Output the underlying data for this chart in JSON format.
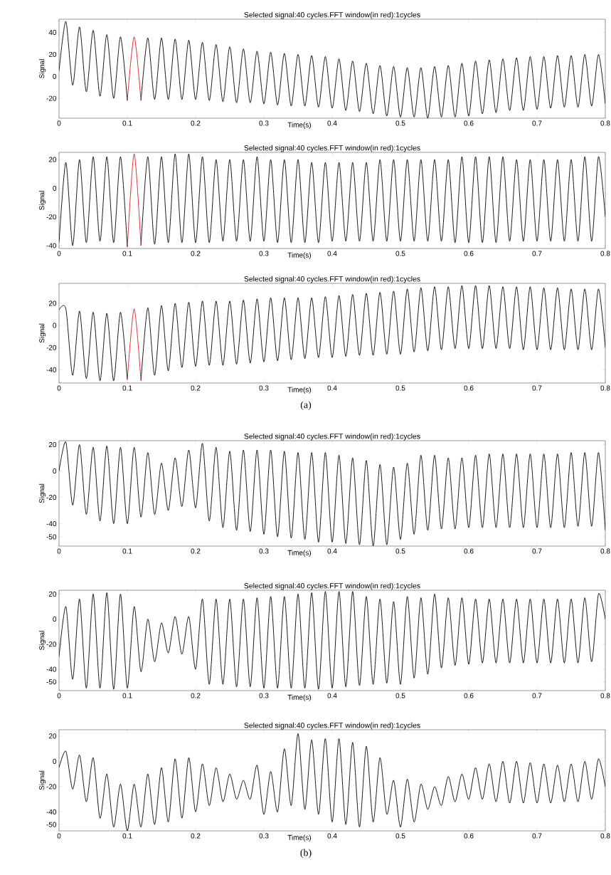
{
  "chart_data": [
    {
      "type": "line",
      "title": "Selected signal:40 cycles.FFT window(in red):1cycles",
      "xlabel": "Time(s)",
      "ylabel": "Signal",
      "x": [
        0,
        0.01,
        0.02,
        0.03,
        0.04,
        0.05,
        0.06,
        0.07,
        0.08,
        0.09,
        0.1,
        0.11,
        0.12,
        0.13,
        0.14,
        0.15,
        0.16,
        0.17,
        0.18,
        0.19,
        0.2,
        0.21,
        0.22,
        0.23,
        0.24,
        0.25,
        0.26,
        0.27,
        0.28,
        0.29,
        0.3,
        0.31,
        0.32,
        0.33,
        0.34,
        0.35,
        0.36,
        0.37,
        0.38,
        0.39,
        0.4,
        0.41,
        0.42,
        0.43,
        0.44,
        0.45,
        0.46,
        0.47,
        0.48,
        0.49,
        0.5,
        0.51,
        0.52,
        0.53,
        0.54,
        0.55,
        0.56,
        0.57,
        0.58,
        0.59,
        0.6,
        0.61,
        0.62,
        0.63,
        0.64,
        0.65,
        0.66,
        0.67,
        0.68,
        0.69,
        0.7,
        0.71,
        0.72,
        0.73,
        0.74,
        0.75,
        0.76,
        0.77,
        0.78,
        0.79,
        0.8
      ],
      "series": [
        {
          "color": "#000000",
          "values": [
            5,
            50,
            -8,
            45,
            -14,
            42,
            -18,
            38,
            -20,
            36,
            -22,
            null,
            -22,
            35,
            -21,
            35,
            -21,
            34,
            -21,
            33,
            -21,
            31,
            -22,
            29,
            -23,
            27,
            -24,
            25,
            -24,
            23,
            -25,
            22,
            -26,
            21,
            -27,
            20,
            -27,
            19,
            -28,
            18,
            -29,
            16,
            -31,
            14,
            -32,
            12,
            -34,
            10,
            -36,
            9,
            -37,
            8,
            -37,
            8,
            -38,
            9,
            -37,
            10,
            -37,
            12,
            -36,
            14,
            -34,
            15,
            -33,
            16,
            -31,
            17,
            -31,
            18,
            -30,
            18,
            -29,
            19,
            -28,
            19,
            -28,
            20,
            -27,
            20,
            -25
          ]
        },
        {
          "color": "#e8141e",
          "x": [
            0.1,
            0.11,
            0.12
          ],
          "values": [
            -22,
            36,
            -22
          ]
        }
      ],
      "xlim": [
        0,
        0.8
      ],
      "ylim": [
        -38,
        52
      ],
      "xticks": [
        0,
        0.1,
        0.2,
        0.3,
        0.4,
        0.5,
        0.6,
        0.7,
        0.8
      ],
      "yticks": [
        -20,
        0,
        20,
        40
      ]
    },
    {
      "type": "line",
      "title": "Selected signal:40 cycles.FFT window(in red):1cycles",
      "xlabel": "Time(s)",
      "ylabel": "Signal",
      "x": [
        0,
        0.01,
        0.02,
        0.03,
        0.04,
        0.05,
        0.06,
        0.07,
        0.08,
        0.09,
        0.1,
        0.11,
        0.12,
        0.13,
        0.14,
        0.15,
        0.16,
        0.17,
        0.18,
        0.19,
        0.2,
        0.21,
        0.22,
        0.23,
        0.24,
        0.25,
        0.26,
        0.27,
        0.28,
        0.29,
        0.3,
        0.31,
        0.32,
        0.33,
        0.34,
        0.35,
        0.36,
        0.37,
        0.38,
        0.39,
        0.4,
        0.41,
        0.42,
        0.43,
        0.44,
        0.45,
        0.46,
        0.47,
        0.48,
        0.49,
        0.5,
        0.51,
        0.52,
        0.53,
        0.54,
        0.55,
        0.56,
        0.57,
        0.58,
        0.59,
        0.6,
        0.61,
        0.62,
        0.63,
        0.64,
        0.65,
        0.66,
        0.67,
        0.68,
        0.69,
        0.7,
        0.71,
        0.72,
        0.73,
        0.74,
        0.75,
        0.76,
        0.77,
        0.78,
        0.79,
        0.8
      ],
      "series": [
        {
          "color": "#000000",
          "values": [
            -38,
            18,
            -40,
            20,
            -38,
            22,
            -37,
            22,
            -38,
            22,
            -41,
            null,
            -40,
            22,
            -39,
            22,
            -38,
            24,
            -38,
            24,
            -38,
            22,
            -38,
            20,
            -37,
            20,
            -37,
            20,
            -37,
            22,
            -37,
            20,
            -38,
            20,
            -38,
            20,
            -38,
            18,
            -38,
            18,
            -37,
            18,
            -37,
            18,
            -37,
            18,
            -37,
            20,
            -37,
            20,
            -37,
            20,
            -37,
            20,
            -37,
            20,
            -37,
            20,
            -38,
            22,
            -38,
            22,
            -38,
            22,
            -38,
            22,
            -37,
            20,
            -37,
            20,
            -37,
            20,
            -37,
            20,
            -37,
            20,
            -37,
            22,
            -37,
            22,
            -20
          ]
        },
        {
          "color": "#e8141e",
          "x": [
            0.1,
            0.11,
            0.12
          ],
          "values": [
            -41,
            24,
            -40
          ]
        }
      ],
      "xlim": [
        0,
        0.8
      ],
      "ylim": [
        -42,
        25
      ],
      "xticks": [
        0,
        0.1,
        0.2,
        0.3,
        0.4,
        0.5,
        0.6,
        0.7,
        0.8
      ],
      "yticks": [
        -40,
        -20,
        0,
        20
      ]
    },
    {
      "type": "line",
      "title": "Selected signal:40 cycles.FFT window(in red):1cycles",
      "xlabel": "Time(s)",
      "ylabel": "Signal",
      "annotations": [
        "(a)"
      ],
      "x": [
        0,
        0.01,
        0.02,
        0.03,
        0.04,
        0.05,
        0.06,
        0.07,
        0.08,
        0.09,
        0.1,
        0.11,
        0.12,
        0.13,
        0.14,
        0.15,
        0.16,
        0.17,
        0.18,
        0.19,
        0.2,
        0.21,
        0.22,
        0.23,
        0.24,
        0.25,
        0.26,
        0.27,
        0.28,
        0.29,
        0.3,
        0.31,
        0.32,
        0.33,
        0.34,
        0.35,
        0.36,
        0.37,
        0.38,
        0.39,
        0.4,
        0.41,
        0.42,
        0.43,
        0.44,
        0.45,
        0.46,
        0.47,
        0.48,
        0.49,
        0.5,
        0.51,
        0.52,
        0.53,
        0.54,
        0.55,
        0.56,
        0.57,
        0.58,
        0.59,
        0.6,
        0.61,
        0.62,
        0.63,
        0.64,
        0.65,
        0.66,
        0.67,
        0.68,
        0.69,
        0.7,
        0.71,
        0.72,
        0.73,
        0.74,
        0.75,
        0.76,
        0.77,
        0.78,
        0.79,
        0.8
      ],
      "series": [
        {
          "color": "#000000",
          "values": [
            14,
            15,
            -45,
            13,
            -48,
            12,
            -50,
            11,
            -50,
            12,
            -49,
            null,
            -50,
            16,
            -45,
            18,
            -41,
            20,
            -38,
            21,
            -37,
            22,
            -36,
            22,
            -36,
            22,
            -35,
            23,
            -34,
            24,
            -33,
            25,
            -32,
            25,
            -31,
            25,
            -30,
            25,
            -29,
            26,
            -29,
            27,
            -28,
            28,
            -27,
            29,
            -27,
            30,
            -26,
            31,
            -26,
            33,
            -24,
            34,
            -23,
            35,
            -22,
            35,
            -21,
            36,
            -21,
            36,
            -21,
            36,
            -21,
            35,
            -21,
            35,
            -22,
            35,
            -22,
            34,
            -22,
            34,
            -22,
            33,
            -22,
            33,
            -22,
            33,
            -20
          ]
        },
        {
          "color": "#e8141e",
          "x": [
            0.1,
            0.11,
            0.12
          ],
          "values": [
            -49,
            15,
            -50
          ]
        }
      ],
      "xlim": [
        0,
        0.8
      ],
      "ylim": [
        -52,
        38
      ],
      "xticks": [
        0,
        0.1,
        0.2,
        0.3,
        0.4,
        0.5,
        0.6,
        0.7,
        0.8
      ],
      "yticks": [
        -40,
        -20,
        0,
        20
      ]
    },
    {
      "type": "line",
      "title": "Selected signal:40 cycles.FFT window(in red):1cycles",
      "xlabel": "Time(s)",
      "ylabel": "Signal",
      "x": [
        0,
        0.01,
        0.02,
        0.03,
        0.04,
        0.05,
        0.06,
        0.07,
        0.08,
        0.09,
        0.1,
        0.11,
        0.12,
        0.13,
        0.14,
        0.15,
        0.16,
        0.17,
        0.18,
        0.19,
        0.2,
        0.21,
        0.22,
        0.23,
        0.24,
        0.25,
        0.26,
        0.27,
        0.28,
        0.29,
        0.3,
        0.31,
        0.32,
        0.33,
        0.34,
        0.35,
        0.36,
        0.37,
        0.38,
        0.39,
        0.4,
        0.41,
        0.42,
        0.43,
        0.44,
        0.45,
        0.46,
        0.47,
        0.48,
        0.49,
        0.5,
        0.51,
        0.52,
        0.53,
        0.54,
        0.55,
        0.56,
        0.57,
        0.58,
        0.59,
        0.6,
        0.61,
        0.62,
        0.63,
        0.64,
        0.65,
        0.66,
        0.67,
        0.68,
        0.69,
        0.7,
        0.71,
        0.72,
        0.73,
        0.74,
        0.75,
        0.76,
        0.77,
        0.78,
        0.79,
        0.8
      ],
      "series": [
        {
          "color": "#000000",
          "values": [
            0,
            22,
            -26,
            20,
            -33,
            18,
            -38,
            19,
            -40,
            18,
            -40,
            18,
            -35,
            14,
            -33,
            6,
            -30,
            10,
            -27,
            16,
            -28,
            21,
            -38,
            18,
            -43,
            15,
            -45,
            16,
            -46,
            16,
            -48,
            16,
            -50,
            15,
            -51,
            14,
            -52,
            14,
            -54,
            14,
            -54,
            12,
            -55,
            10,
            -56,
            8,
            -57,
            5,
            -56,
            3,
            -52,
            6,
            -48,
            12,
            -45,
            12,
            -44,
            10,
            -44,
            10,
            -43,
            12,
            -43,
            13,
            -43,
            13,
            -43,
            13,
            -43,
            13,
            -43,
            13,
            -43,
            13,
            -43,
            14,
            -42,
            14,
            -42,
            14,
            -45
          ]
        }
      ],
      "xlim": [
        0,
        0.8
      ],
      "ylim": [
        -57,
        23
      ],
      "xticks": [
        0,
        0.1,
        0.2,
        0.3,
        0.4,
        0.5,
        0.6,
        0.7,
        0.8
      ],
      "yticks": [
        -50,
        -40,
        -20,
        0,
        20
      ]
    },
    {
      "type": "line",
      "title": "Selected signal:40 cycles.FFT window(in red):1cycles",
      "xlabel": "Time(s)",
      "ylabel": "Signal",
      "x": [
        0,
        0.01,
        0.02,
        0.03,
        0.04,
        0.05,
        0.06,
        0.07,
        0.08,
        0.09,
        0.1,
        0.11,
        0.12,
        0.13,
        0.14,
        0.15,
        0.16,
        0.17,
        0.18,
        0.19,
        0.2,
        0.21,
        0.22,
        0.23,
        0.24,
        0.25,
        0.26,
        0.27,
        0.28,
        0.29,
        0.3,
        0.31,
        0.32,
        0.33,
        0.34,
        0.35,
        0.36,
        0.37,
        0.38,
        0.39,
        0.4,
        0.41,
        0.42,
        0.43,
        0.44,
        0.45,
        0.46,
        0.47,
        0.48,
        0.49,
        0.5,
        0.51,
        0.52,
        0.53,
        0.54,
        0.55,
        0.56,
        0.57,
        0.58,
        0.59,
        0.6,
        0.61,
        0.62,
        0.63,
        0.64,
        0.65,
        0.66,
        0.67,
        0.68,
        0.69,
        0.7,
        0.71,
        0.72,
        0.73,
        0.74,
        0.75,
        0.76,
        0.77,
        0.78,
        0.79,
        0.8
      ],
      "series": [
        {
          "color": "#000000",
          "values": [
            -30,
            10,
            -48,
            16,
            -55,
            20,
            -55,
            21,
            -56,
            20,
            -55,
            10,
            -42,
            0,
            -34,
            -3,
            -27,
            2,
            -28,
            2,
            -40,
            16,
            -52,
            16,
            -52,
            16,
            -54,
            16,
            -54,
            17,
            -55,
            18,
            -55,
            18,
            -55,
            20,
            -55,
            21,
            -56,
            22,
            -55,
            22,
            -54,
            22,
            -53,
            18,
            -52,
            16,
            -51,
            14,
            -52,
            18,
            -47,
            17,
            -44,
            20,
            -39,
            17,
            -37,
            17,
            -36,
            16,
            -35,
            16,
            -35,
            16,
            -35,
            16,
            -35,
            16,
            -35,
            16,
            -35,
            16,
            -35,
            16,
            -35,
            17,
            -34,
            20,
            0
          ]
        }
      ],
      "xlim": [
        0,
        0.8
      ],
      "ylim": [
        -57,
        23
      ],
      "xticks": [
        0,
        0.1,
        0.2,
        0.3,
        0.4,
        0.5,
        0.6,
        0.7,
        0.8
      ],
      "yticks": [
        -50,
        -40,
        -20,
        0,
        20
      ]
    },
    {
      "type": "line",
      "title": "Selected signal:40 cycles.FFT window(in red):1cycles",
      "xlabel": "Time(s)",
      "ylabel": "Signal",
      "annotations": [
        "(b)"
      ],
      "x": [
        0,
        0.01,
        0.02,
        0.03,
        0.04,
        0.05,
        0.06,
        0.07,
        0.08,
        0.09,
        0.1,
        0.11,
        0.12,
        0.13,
        0.14,
        0.15,
        0.16,
        0.17,
        0.18,
        0.19,
        0.2,
        0.21,
        0.22,
        0.23,
        0.24,
        0.25,
        0.26,
        0.27,
        0.28,
        0.29,
        0.3,
        0.31,
        0.32,
        0.33,
        0.34,
        0.35,
        0.36,
        0.37,
        0.38,
        0.39,
        0.4,
        0.41,
        0.42,
        0.43,
        0.44,
        0.45,
        0.46,
        0.47,
        0.48,
        0.49,
        0.5,
        0.51,
        0.52,
        0.53,
        0.54,
        0.55,
        0.56,
        0.57,
        0.58,
        0.59,
        0.6,
        0.61,
        0.62,
        0.63,
        0.64,
        0.65,
        0.66,
        0.67,
        0.68,
        0.69,
        0.7,
        0.71,
        0.72,
        0.73,
        0.74,
        0.75,
        0.76,
        0.77,
        0.78,
        0.79,
        0.8
      ],
      "series": [
        {
          "color": "#000000",
          "values": [
            -5,
            8,
            -22,
            5,
            -32,
            3,
            -45,
            -10,
            -52,
            -18,
            -55,
            -18,
            -52,
            -10,
            -50,
            -5,
            -48,
            2,
            -45,
            3,
            -40,
            -2,
            -35,
            -5,
            -32,
            -10,
            -30,
            -15,
            -30,
            -3,
            -42,
            -8,
            -40,
            10,
            -35,
            22,
            -38,
            17,
            -42,
            18,
            -48,
            18,
            -50,
            15,
            -52,
            12,
            -48,
            3,
            -42,
            -15,
            -52,
            -14,
            -48,
            -18,
            -38,
            -20,
            -35,
            -12,
            -32,
            -10,
            -30,
            -5,
            -30,
            -2,
            -32,
            0,
            -33,
            0,
            -33,
            -1,
            -33,
            -2,
            -33,
            -3,
            -32,
            -2,
            -32,
            0,
            -30,
            2,
            -20
          ]
        }
      ],
      "xlim": [
        0,
        0.8
      ],
      "ylim": [
        -55,
        25
      ],
      "xticks": [
        0,
        0.1,
        0.2,
        0.3,
        0.4,
        0.5,
        0.6,
        0.7,
        0.8
      ],
      "yticks": [
        -50,
        -40,
        -20,
        0,
        20
      ]
    }
  ]
}
